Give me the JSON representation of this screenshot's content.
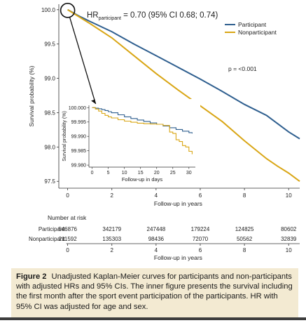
{
  "colors": {
    "participant": "#2f5f8f",
    "nonparticipant": "#d9a615",
    "text": "#1a1a1a",
    "caption_bg": "#f3ead2"
  },
  "chart_data": [
    {
      "type": "line",
      "hr_label_prefix": "HR",
      "hr_label_sub": "participant",
      "hr_label_suffix": " = 0.70 (95% CI 0.68; 0.74)",
      "xlabel": "Follow-up in years",
      "ylabel": "Survival probability (%)",
      "xlim": [
        -0.4,
        10.5
      ],
      "ylim": [
        97.4,
        100.08
      ],
      "xticks": [
        0,
        2,
        4,
        6,
        8,
        10
      ],
      "yticks": [
        97.5,
        98.0,
        98.5,
        99.0,
        99.5,
        100.0
      ],
      "ytick_labels": [
        "97.5",
        "98.0",
        "98.5",
        "99.0",
        "99.5",
        "100.0"
      ],
      "legend_position": "top-right",
      "p_value": "p = <0.001",
      "grid": false,
      "series": [
        {
          "name": "Participant",
          "x": [
            0,
            0.5,
            1,
            2,
            3,
            4,
            5,
            6,
            7,
            8,
            9,
            10,
            10.5
          ],
          "y": [
            100.0,
            99.91,
            99.83,
            99.68,
            99.5,
            99.33,
            99.16,
            98.99,
            98.81,
            98.62,
            98.46,
            98.22,
            98.12
          ]
        },
        {
          "name": "Nonparticipant",
          "x": [
            0,
            0.5,
            1,
            2,
            3,
            4,
            5,
            6,
            7,
            8,
            9,
            9.5,
            10,
            10.5
          ],
          "y": [
            100.0,
            99.9,
            99.8,
            99.59,
            99.33,
            99.07,
            98.83,
            98.6,
            98.37,
            98.09,
            97.83,
            97.72,
            97.62,
            97.5
          ]
        }
      ]
    },
    {
      "type": "line",
      "xlabel": "Follow-up in days",
      "ylabel": "Survival probability (%)",
      "xlim": [
        -1,
        32
      ],
      "ylim": [
        99.9793,
        100.0008
      ],
      "xticks": [
        0,
        5,
        10,
        15,
        20,
        25,
        30
      ],
      "yticks": [
        99.98,
        99.985,
        99.99,
        99.995,
        100.0
      ],
      "ytick_labels": [
        "99.980",
        "99.985",
        "99.990",
        "99.995",
        "100.000"
      ],
      "grid": false,
      "series": [
        {
          "name": "Participant",
          "x": [
            0,
            1,
            2,
            3,
            4,
            5,
            6,
            8,
            10,
            12,
            14,
            16,
            18,
            20,
            22,
            24,
            26,
            28,
            30,
            31
          ],
          "y": [
            100.0,
            99.9998,
            99.9996,
            99.9993,
            99.999,
            99.9986,
            99.9982,
            99.9975,
            99.9968,
            99.9962,
            99.9957,
            99.9952,
            99.9947,
            99.9942,
            99.9936,
            99.993,
            99.9924,
            99.9918,
            99.9913,
            99.991
          ]
        },
        {
          "name": "Nonparticipant",
          "x": [
            0,
            1,
            2,
            3,
            4,
            5,
            6,
            8,
            10,
            12,
            14,
            16,
            18,
            20,
            22,
            24,
            25,
            26,
            27,
            28,
            29,
            30,
            31
          ],
          "y": [
            100.0,
            99.9995,
            99.9988,
            99.998,
            99.9973,
            99.9968,
            99.9964,
            99.9958,
            99.9953,
            99.9949,
            99.9946,
            99.9944,
            99.9943,
            99.9942,
            99.9938,
            99.9915,
            99.991,
            99.9888,
            99.9882,
            99.9868,
            99.9863,
            99.9848,
            99.9838
          ]
        }
      ]
    }
  ],
  "risk_table": {
    "title": "Number at risk",
    "xticks": [
      0,
      2,
      4,
      6,
      8,
      10
    ],
    "xlabel": "Follow-up in years",
    "rows": [
      {
        "name": "Participant",
        "values": [
          "546876",
          "342179",
          "247448",
          "179224",
          "124825",
          "80602"
        ]
      },
      {
        "name": "Nonparticipant",
        "values": [
          "211592",
          "135303",
          "98436",
          "72070",
          "50562",
          "32839"
        ]
      }
    ]
  },
  "caption": {
    "label": "Figure 2",
    "text": "Unadjusted Kaplan-Meier curves for participants and non-participants with adjusted HRs and 95% CIs. The inner figure presents the survival including the first month after the sport event participation of the participants. HR with 95% CI was adjusted for age and sex."
  }
}
